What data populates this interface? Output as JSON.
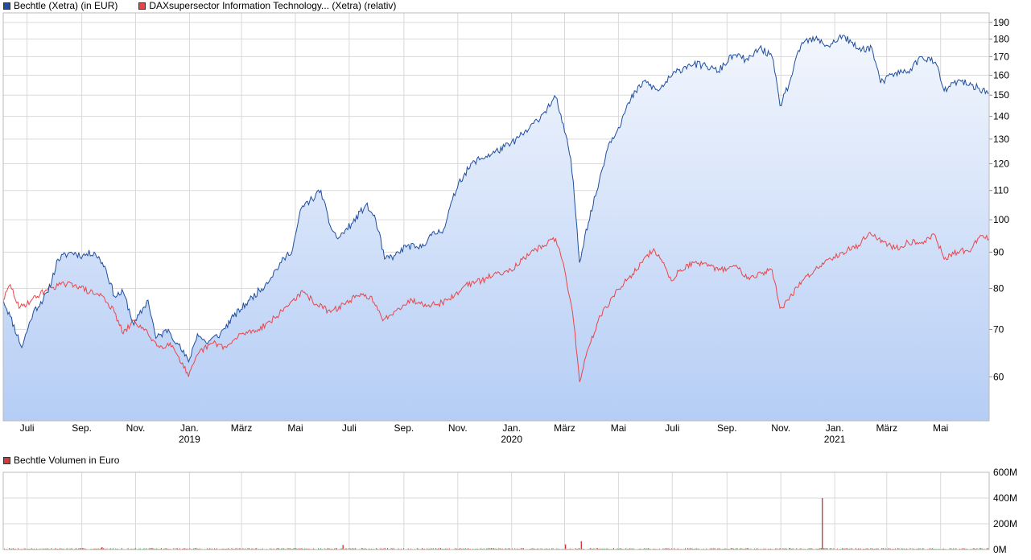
{
  "legend": {
    "series1": "Bechtle (Xetra) (in EUR)",
    "series2": "DAXsupersector Information Technology... (Xetra) (relativ)",
    "volume": "Bechtle Volumen in Euro"
  },
  "colors": {
    "series1": "#1f4e9e",
    "series2": "#e8454a",
    "fill_top": "#f2f6fd",
    "fill_bottom": "#b5cdf5",
    "grid": "#d9d9d9",
    "volume_up": "#3a9a3a",
    "volume_down": "#d43a3a"
  },
  "chart_data": [
    {
      "type": "line",
      "scale": "log",
      "ylim": [
        52,
        196
      ],
      "y_ticks": [
        60,
        70,
        80,
        90,
        100,
        110,
        120,
        130,
        140,
        150,
        160,
        170,
        180,
        190
      ],
      "x_range": [
        "2018-06-04",
        "2021-06-25"
      ],
      "x_ticks": [
        {
          "date": "2018-07-01",
          "label": "Juli",
          "year": ""
        },
        {
          "date": "2018-09-01",
          "label": "Sep.",
          "year": ""
        },
        {
          "date": "2018-11-01",
          "label": "Nov.",
          "year": ""
        },
        {
          "date": "2019-01-01",
          "label": "Jan.",
          "year": "2019"
        },
        {
          "date": "2019-03-01",
          "label": "März",
          "year": ""
        },
        {
          "date": "2019-05-01",
          "label": "Mai",
          "year": ""
        },
        {
          "date": "2019-07-01",
          "label": "Juli",
          "year": ""
        },
        {
          "date": "2019-09-01",
          "label": "Sep.",
          "year": ""
        },
        {
          "date": "2019-11-01",
          "label": "Nov.",
          "year": ""
        },
        {
          "date": "2020-01-01",
          "label": "Jan.",
          "year": "2020"
        },
        {
          "date": "2020-03-01",
          "label": "März",
          "year": ""
        },
        {
          "date": "2020-05-01",
          "label": "Mai",
          "year": ""
        },
        {
          "date": "2020-07-01",
          "label": "Juli",
          "year": ""
        },
        {
          "date": "2020-09-01",
          "label": "Sep.",
          "year": ""
        },
        {
          "date": "2020-11-01",
          "label": "Nov.",
          "year": ""
        },
        {
          "date": "2021-01-01",
          "label": "Jan.",
          "year": "2021"
        },
        {
          "date": "2021-03-01",
          "label": "März",
          "year": ""
        },
        {
          "date": "2021-05-01",
          "label": "Mai",
          "year": ""
        }
      ],
      "grid": true,
      "legend_position": "top-left",
      "series": [
        {
          "name": "Bechtle (Xetra) (in EUR)",
          "points": [
            [
              "2018-06-04",
              77
            ],
            [
              "2018-06-12",
              73
            ],
            [
              "2018-06-25",
              66
            ],
            [
              "2018-07-08",
              74
            ],
            [
              "2018-07-25",
              79
            ],
            [
              "2018-08-05",
              88
            ],
            [
              "2018-08-20",
              90
            ],
            [
              "2018-09-02",
              89
            ],
            [
              "2018-09-15",
              90
            ],
            [
              "2018-09-27",
              86
            ],
            [
              "2018-10-08",
              78
            ],
            [
              "2018-10-18",
              79
            ],
            [
              "2018-10-30",
              71
            ],
            [
              "2018-11-15",
              77
            ],
            [
              "2018-11-24",
              68
            ],
            [
              "2018-12-08",
              70
            ],
            [
              "2018-12-18",
              67
            ],
            [
              "2018-12-31",
              63
            ],
            [
              "2019-01-10",
              69
            ],
            [
              "2019-01-20",
              67
            ],
            [
              "2019-02-05",
              69
            ],
            [
              "2019-02-20",
              73
            ],
            [
              "2019-03-10",
              77
            ],
            [
              "2019-03-28",
              81
            ],
            [
              "2019-04-15",
              87
            ],
            [
              "2019-04-28",
              91
            ],
            [
              "2019-05-08",
              104
            ],
            [
              "2019-05-20",
              107
            ],
            [
              "2019-05-30",
              110
            ],
            [
              "2019-06-08",
              99
            ],
            [
              "2019-06-18",
              94
            ],
            [
              "2019-07-05",
              99
            ],
            [
              "2019-07-20",
              105
            ],
            [
              "2019-07-31",
              100
            ],
            [
              "2019-08-10",
              88
            ],
            [
              "2019-08-22",
              89
            ],
            [
              "2019-09-05",
              92
            ],
            [
              "2019-09-18",
              91
            ],
            [
              "2019-10-02",
              95
            ],
            [
              "2019-10-16",
              97
            ],
            [
              "2019-11-02",
              113
            ],
            [
              "2019-11-20",
              121
            ],
            [
              "2019-12-10",
              124
            ],
            [
              "2019-12-31",
              128
            ],
            [
              "2020-01-20",
              134
            ],
            [
              "2020-02-05",
              141
            ],
            [
              "2020-02-20",
              149
            ],
            [
              "2020-03-01",
              133
            ],
            [
              "2020-03-08",
              122
            ],
            [
              "2020-03-18",
              87
            ],
            [
              "2020-03-24",
              95
            ],
            [
              "2020-04-05",
              108
            ],
            [
              "2020-04-20",
              128
            ],
            [
              "2020-05-01",
              135
            ],
            [
              "2020-05-15",
              148
            ],
            [
              "2020-05-30",
              157
            ],
            [
              "2020-06-15",
              152
            ],
            [
              "2020-07-01",
              160
            ],
            [
              "2020-07-20",
              166
            ],
            [
              "2020-08-08",
              165
            ],
            [
              "2020-08-22",
              162
            ],
            [
              "2020-09-08",
              171
            ],
            [
              "2020-09-25",
              168
            ],
            [
              "2020-10-08",
              175
            ],
            [
              "2020-10-22",
              170
            ],
            [
              "2020-10-31",
              145
            ],
            [
              "2020-11-10",
              155
            ],
            [
              "2020-11-25",
              178
            ],
            [
              "2020-12-10",
              180
            ],
            [
              "2020-12-25",
              176
            ],
            [
              "2021-01-10",
              182
            ],
            [
              "2021-01-28",
              174
            ],
            [
              "2021-02-12",
              175
            ],
            [
              "2021-02-22",
              156
            ],
            [
              "2021-03-10",
              161
            ],
            [
              "2021-03-25",
              162
            ],
            [
              "2021-04-10",
              170
            ],
            [
              "2021-04-25",
              167
            ],
            [
              "2021-05-05",
              152
            ],
            [
              "2021-05-20",
              157
            ],
            [
              "2021-06-05",
              155
            ],
            [
              "2021-06-25",
              151
            ]
          ]
        },
        {
          "name": "DAXsupersector Information Technology... (Xetra) (relativ)",
          "points": [
            [
              "2018-06-04",
              77
            ],
            [
              "2018-06-12",
              81
            ],
            [
              "2018-06-22",
              75
            ],
            [
              "2018-07-06",
              77
            ],
            [
              "2018-07-25",
              80
            ],
            [
              "2018-08-08",
              81
            ],
            [
              "2018-08-25",
              81
            ],
            [
              "2018-09-10",
              79
            ],
            [
              "2018-09-25",
              78
            ],
            [
              "2018-10-08",
              74
            ],
            [
              "2018-10-18",
              69
            ],
            [
              "2018-10-30",
              72
            ],
            [
              "2018-11-15",
              69
            ],
            [
              "2018-11-28",
              66
            ],
            [
              "2018-12-10",
              67
            ],
            [
              "2018-12-20",
              64
            ],
            [
              "2018-12-31",
              60
            ],
            [
              "2019-01-12",
              65
            ],
            [
              "2019-01-28",
              67
            ],
            [
              "2019-02-12",
              66
            ],
            [
              "2019-03-01",
              69
            ],
            [
              "2019-03-20",
              70
            ],
            [
              "2019-04-10",
              73
            ],
            [
              "2019-04-28",
              77
            ],
            [
              "2019-05-10",
              79
            ],
            [
              "2019-05-25",
              76
            ],
            [
              "2019-06-10",
              74
            ],
            [
              "2019-06-25",
              76
            ],
            [
              "2019-07-10",
              78
            ],
            [
              "2019-07-25",
              78
            ],
            [
              "2019-08-08",
              72
            ],
            [
              "2019-08-25",
              75
            ],
            [
              "2019-09-10",
              77
            ],
            [
              "2019-09-25",
              76
            ],
            [
              "2019-10-10",
              76
            ],
            [
              "2019-10-28",
              78
            ],
            [
              "2019-11-10",
              81
            ],
            [
              "2019-11-28",
              82
            ],
            [
              "2019-12-15",
              84
            ],
            [
              "2019-12-31",
              85
            ],
            [
              "2020-01-20",
              89
            ],
            [
              "2020-02-05",
              92
            ],
            [
              "2020-02-20",
              94
            ],
            [
              "2020-03-01",
              85
            ],
            [
              "2020-03-10",
              74
            ],
            [
              "2020-03-18",
              59
            ],
            [
              "2020-03-25",
              64
            ],
            [
              "2020-04-08",
              72
            ],
            [
              "2020-04-25",
              78
            ],
            [
              "2020-05-10",
              82
            ],
            [
              "2020-05-28",
              87
            ],
            [
              "2020-06-10",
              91
            ],
            [
              "2020-06-20",
              87
            ],
            [
              "2020-06-30",
              82
            ],
            [
              "2020-07-10",
              85
            ],
            [
              "2020-07-25",
              87
            ],
            [
              "2020-08-10",
              86
            ],
            [
              "2020-08-25",
              85
            ],
            [
              "2020-09-10",
              86
            ],
            [
              "2020-09-25",
              83
            ],
            [
              "2020-10-10",
              84
            ],
            [
              "2020-10-22",
              85
            ],
            [
              "2020-10-31",
              75
            ],
            [
              "2020-11-10",
              77
            ],
            [
              "2020-11-25",
              82
            ],
            [
              "2020-12-10",
              85
            ],
            [
              "2020-12-25",
              88
            ],
            [
              "2021-01-10",
              90
            ],
            [
              "2021-01-28",
              92
            ],
            [
              "2021-02-10",
              96
            ],
            [
              "2021-02-25",
              93
            ],
            [
              "2021-03-10",
              91
            ],
            [
              "2021-03-25",
              93
            ],
            [
              "2021-04-10",
              93
            ],
            [
              "2021-04-25",
              95
            ],
            [
              "2021-05-05",
              88
            ],
            [
              "2021-05-20",
              90
            ],
            [
              "2021-06-05",
              91
            ],
            [
              "2021-06-15",
              95
            ],
            [
              "2021-06-25",
              94
            ]
          ]
        }
      ]
    },
    {
      "type": "bar",
      "title": "Bechtle Volumen in Euro",
      "ylim": [
        0,
        600
      ],
      "y_ticks": [
        {
          "value": 0,
          "label": "0M"
        },
        {
          "value": 200,
          "label": "200M"
        },
        {
          "value": 400,
          "label": "400M"
        },
        {
          "value": 600,
          "label": "600M"
        }
      ],
      "unit": "M",
      "x_range": [
        "2018-06-04",
        "2021-06-25"
      ],
      "baseline_volume": 12,
      "spikes": [
        {
          "date": "2018-09-24",
          "value": 18
        },
        {
          "date": "2019-06-24",
          "value": 35
        },
        {
          "date": "2020-03-02",
          "value": 40
        },
        {
          "date": "2020-03-20",
          "value": 65
        },
        {
          "date": "2020-12-18",
          "value": 400
        }
      ]
    }
  ]
}
